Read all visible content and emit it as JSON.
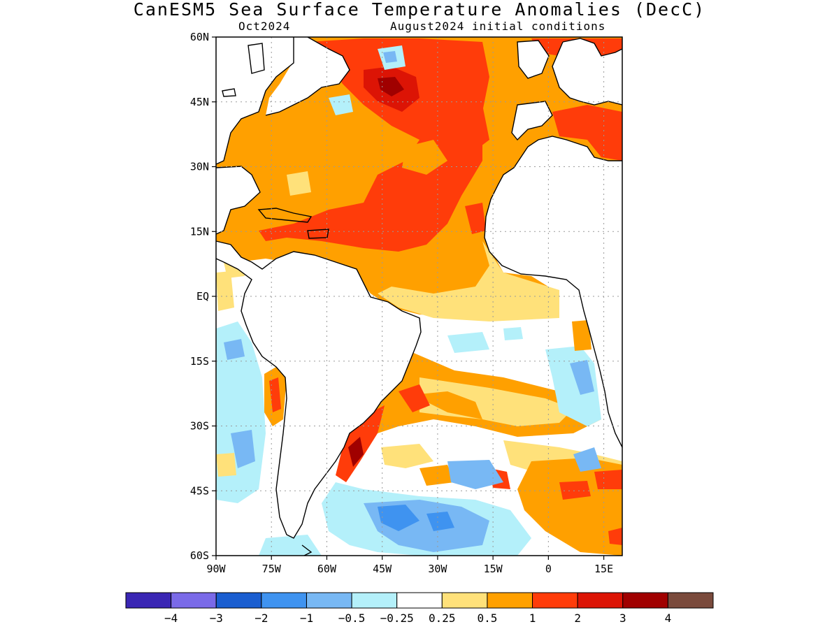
{
  "title": "CanESM5 Sea Surface Temperature Anomalies (DecC)",
  "subtitle_left": "Oct2024",
  "subtitle_right": "August2024 initial conditions",
  "map_extent": {
    "lon_min": -90,
    "lon_max": 20,
    "lat_min": -60,
    "lat_max": 60
  },
  "lat_ticks": [
    {
      "lat": 60,
      "label": "60N"
    },
    {
      "lat": 45,
      "label": "45N"
    },
    {
      "lat": 30,
      "label": "30N"
    },
    {
      "lat": 15,
      "label": "15N"
    },
    {
      "lat": 0,
      "label": "EQ"
    },
    {
      "lat": -15,
      "label": "15S"
    },
    {
      "lat": -30,
      "label": "30S"
    },
    {
      "lat": -45,
      "label": "45S"
    },
    {
      "lat": -60,
      "label": "60S"
    }
  ],
  "lon_ticks": [
    {
      "lon": -90,
      "label": "90W"
    },
    {
      "lon": -75,
      "label": "75W"
    },
    {
      "lon": -60,
      "label": "60W"
    },
    {
      "lon": -45,
      "label": "45W"
    },
    {
      "lon": -30,
      "label": "30W"
    },
    {
      "lon": -15,
      "label": "15W"
    },
    {
      "lon": 0,
      "label": "0"
    },
    {
      "lon": 15,
      "label": "15E"
    }
  ],
  "colorbar": {
    "colors": [
      "#3a26b4",
      "#7a6ae8",
      "#1a5ed0",
      "#3f93f0",
      "#78b8f4",
      "#b4f0fa",
      "#ffffff",
      "#ffe17a",
      "#ffa000",
      "#ff3c0a",
      "#dc1405",
      "#a00000",
      "#7a4a3c"
    ],
    "labels": [
      "−4",
      "−3",
      "−2",
      "−1",
      "−0.5",
      "−0.25",
      "0.25",
      "0.5",
      "1",
      "2",
      "3",
      "4"
    ]
  },
  "colors": {
    "land": "#ffffff",
    "coast": "#000000",
    "grid": "#9a9a9a"
  }
}
